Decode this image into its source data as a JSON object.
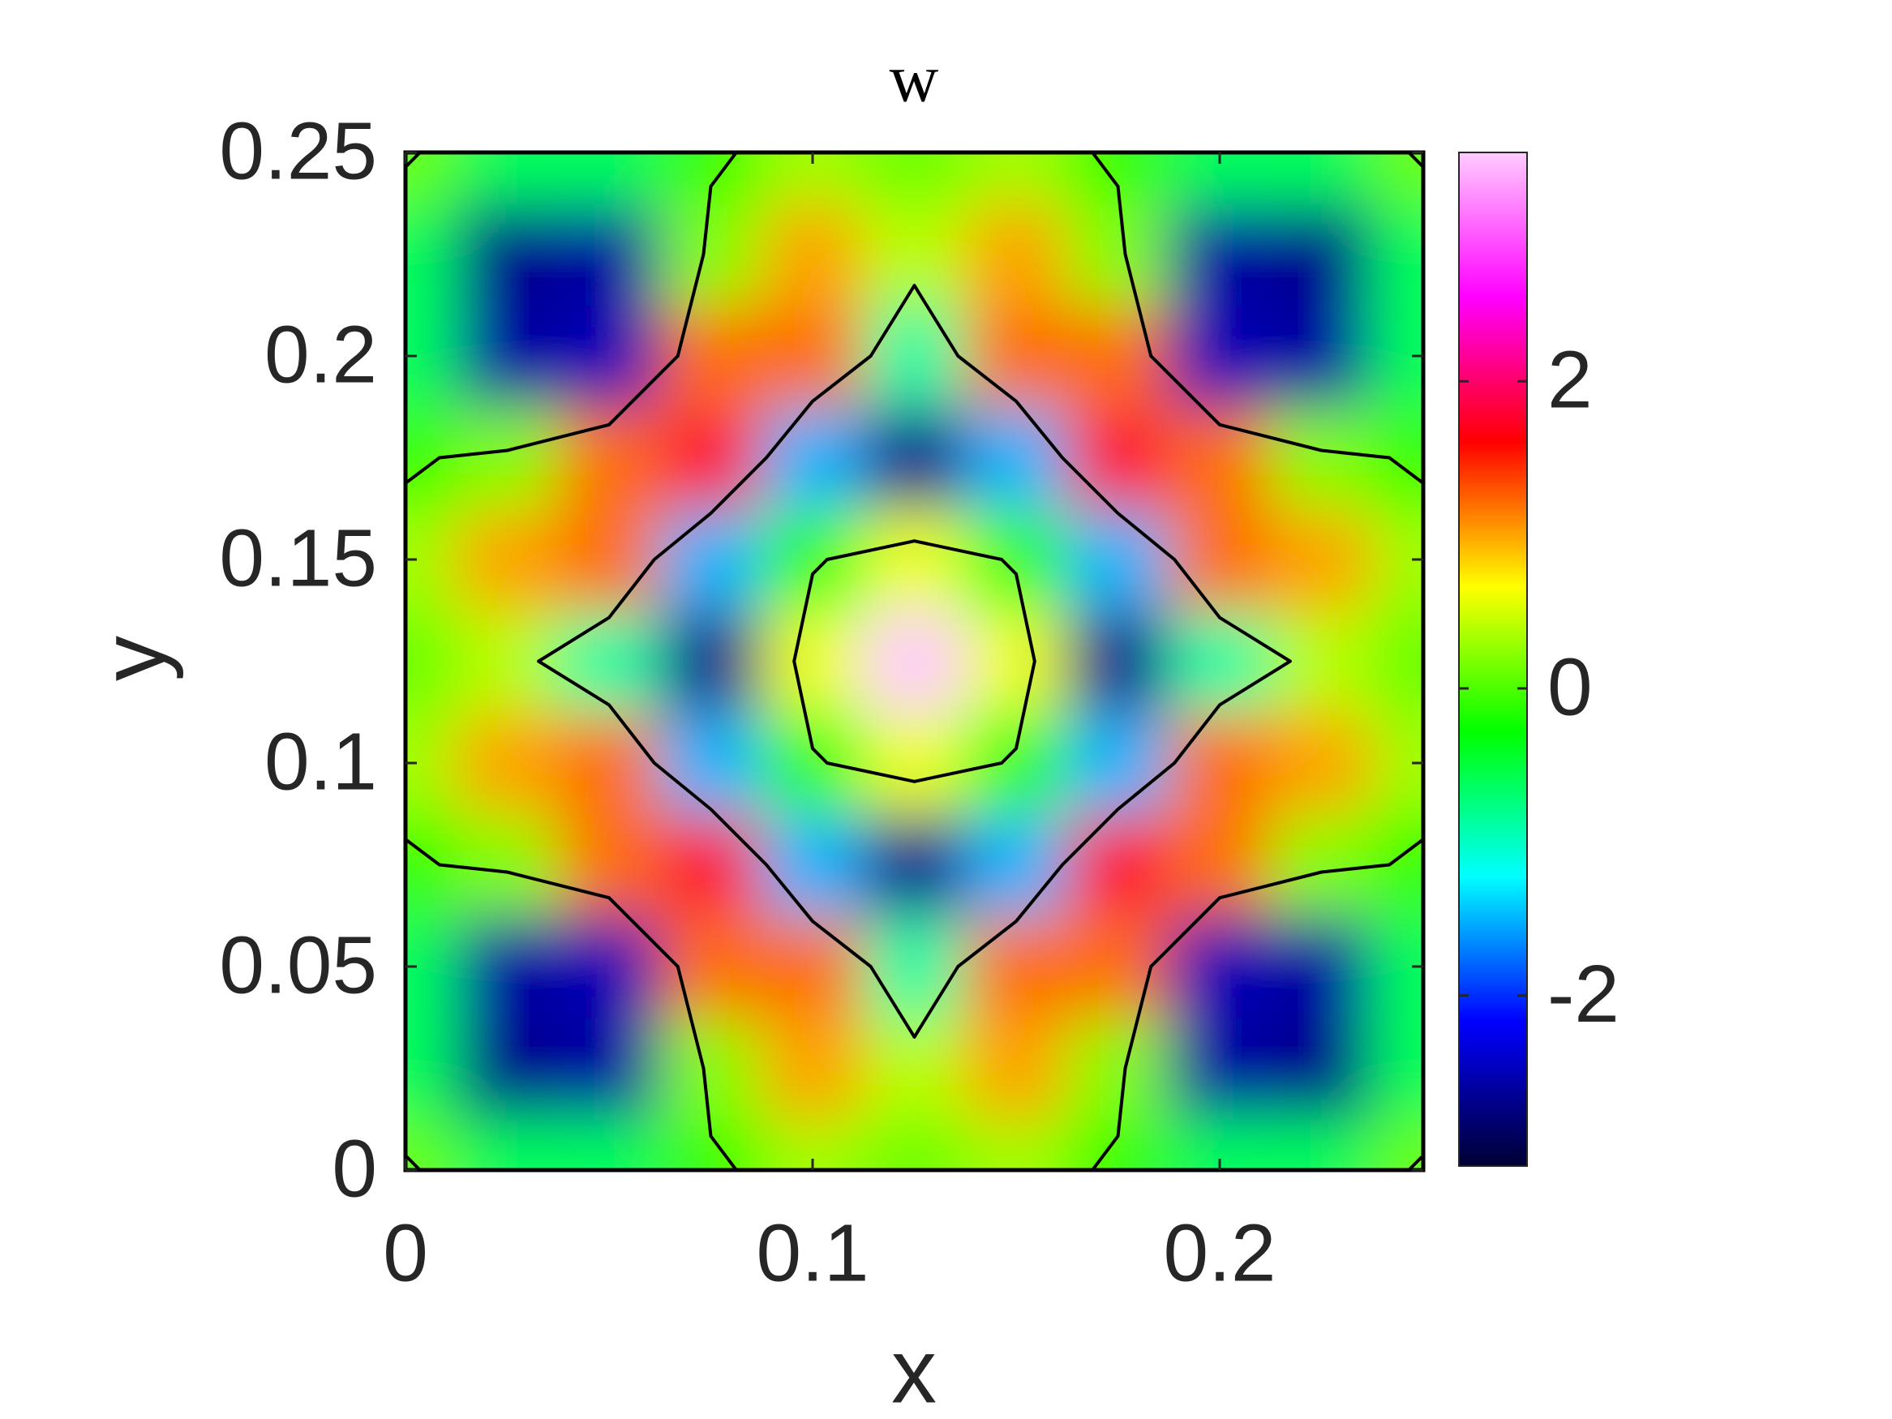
{
  "chart_data": {
    "type": "heatmap",
    "title": "w",
    "xlabel": "x",
    "ylabel": "y",
    "x": [
      0,
      0.025,
      0.05,
      0.075,
      0.1,
      0.125,
      0.15,
      0.175,
      0.2,
      0.225,
      0.25
    ],
    "y": [
      0,
      0.025,
      0.05,
      0.075,
      0.1,
      0.125,
      0.15,
      0.175,
      0.2,
      0.225,
      0.25
    ],
    "z": [
      [
        0.1,
        -0.6,
        -0.6,
        -0.1,
        0.3,
        0.1,
        0.3,
        -0.1,
        -0.6,
        -0.6,
        0.1
      ],
      [
        -0.6,
        -2.7,
        -2.6,
        0.2,
        1.0,
        0.4,
        1.0,
        0.2,
        -2.6,
        -2.7,
        -0.6
      ],
      [
        -0.6,
        -2.6,
        -2.5,
        1.2,
        1.2,
        -0.9,
        1.2,
        1.2,
        -2.5,
        -2.6,
        -0.6
      ],
      [
        -0.1,
        0.2,
        1.2,
        1.8,
        -1.5,
        -2.7,
        -1.5,
        1.8,
        1.2,
        0.2,
        -0.1
      ],
      [
        0.3,
        1.0,
        1.2,
        -1.5,
        -0.1,
        0.6,
        -0.1,
        -1.5,
        1.2,
        1.0,
        0.3
      ],
      [
        0.1,
        0.4,
        -0.9,
        -2.7,
        0.6,
        3.5,
        0.6,
        -2.7,
        -0.9,
        0.4,
        0.1
      ],
      [
        0.3,
        1.0,
        1.2,
        -1.5,
        -0.1,
        0.6,
        -0.1,
        -1.5,
        1.2,
        1.0,
        0.3
      ],
      [
        -0.1,
        0.2,
        1.2,
        1.8,
        -1.5,
        -2.7,
        -1.5,
        1.8,
        1.2,
        0.2,
        -0.1
      ],
      [
        -0.6,
        -2.6,
        -2.5,
        1.2,
        1.2,
        -0.9,
        1.2,
        1.2,
        -2.5,
        -2.6,
        -0.6
      ],
      [
        -0.6,
        -2.7,
        -2.6,
        0.2,
        1.0,
        0.4,
        1.0,
        0.2,
        -2.6,
        -2.7,
        -0.6
      ],
      [
        0.1,
        -0.6,
        -0.6,
        -0.1,
        0.3,
        0.1,
        0.3,
        -0.1,
        -0.6,
        -0.6,
        0.1
      ]
    ],
    "xlim": [
      0,
      0.25
    ],
    "ylim": [
      0,
      0.25
    ],
    "xticks": [
      0,
      0.1,
      0.2
    ],
    "yticks": [
      0,
      0.05,
      0.1,
      0.15,
      0.2,
      0.25
    ],
    "clim": [
      -3.11,
      3.49
    ],
    "cticks": [
      -2,
      0,
      2
    ],
    "colormap": [
      "#000033",
      "#0000ff",
      "#00ffff",
      "#00ff00",
      "#ffff00",
      "#ff0000",
      "#ff00ff",
      "#ffccff"
    ],
    "contour_levels": [
      0
    ],
    "contour_color": "#000000"
  }
}
